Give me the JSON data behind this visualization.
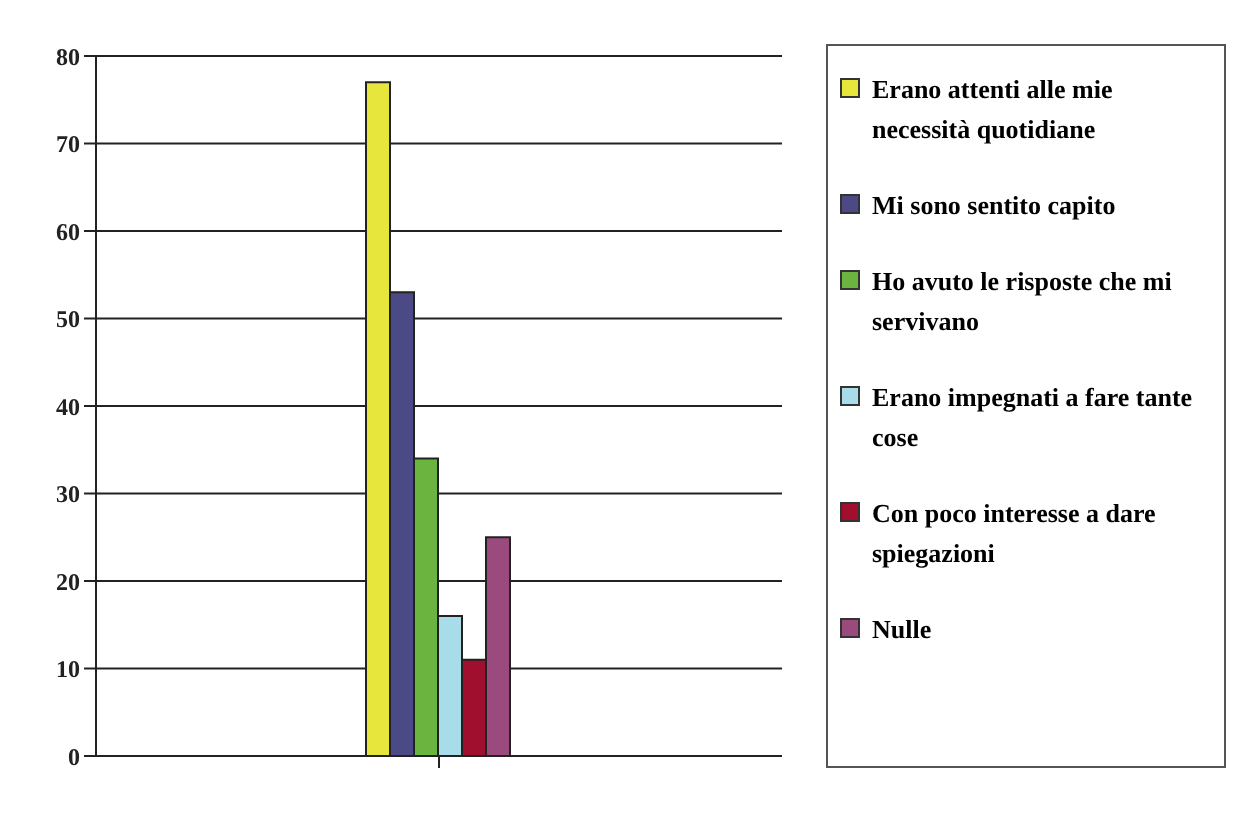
{
  "chart_data": {
    "type": "bar",
    "categories": [
      null
    ],
    "series": [
      {
        "name": "Erano attenti alle mie necessità quotidiane",
        "color": "#e6e63c",
        "values": [
          77
        ]
      },
      {
        "name": "Mi sono sentito capito",
        "color": "#4c4a86",
        "values": [
          53
        ]
      },
      {
        "name": "Ho avuto le risposte che mi servivano",
        "color": "#6cb440",
        "values": [
          34
        ]
      },
      {
        "name": "Erano impegnati a fare tante cose",
        "color": "#a8dce8",
        "values": [
          16
        ]
      },
      {
        "name": "Con poco interesse a dare spiegazioni",
        "color": "#a0102e",
        "values": [
          11
        ]
      },
      {
        "name": "Nulle",
        "color": "#9a4a7c",
        "values": [
          25
        ]
      }
    ],
    "ylim": [
      0,
      80
    ],
    "yticks": [
      0,
      10,
      20,
      30,
      40,
      50,
      60,
      70,
      80
    ],
    "grid": "y",
    "legend": "right"
  }
}
